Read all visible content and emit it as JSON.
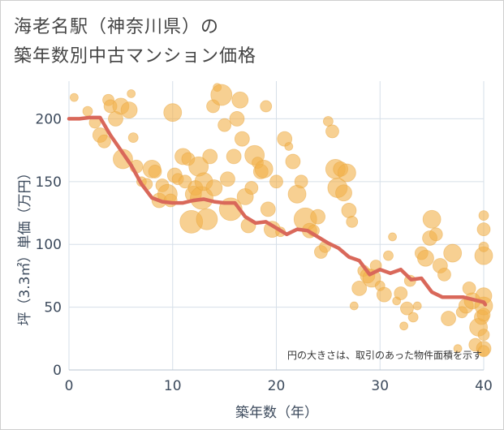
{
  "header": {
    "title_line1": "海老名駅（神奈川県）の",
    "title_line2": "築年数別中古マンション価格"
  },
  "colors": {
    "bubble": "#f2b04a",
    "line": "#d9685a",
    "grid": "#d6dfe8",
    "tick_text": "#3c4a5c"
  },
  "chart_data": {
    "type": "scatter",
    "xlabel": "築年数（年）",
    "ylabel": "坪（3.3㎡）単価（万円）",
    "xlim": [
      0,
      40
    ],
    "ylim": [
      0,
      230
    ],
    "x_ticks": [
      0,
      10,
      20,
      30,
      40
    ],
    "y_ticks": [
      0,
      50,
      100,
      150,
      200
    ],
    "grid": true,
    "note": "円の大きさは、取引のあった物件面積を示す",
    "series": [
      {
        "type": "line",
        "points": [
          [
            0,
            200
          ],
          [
            1,
            200
          ],
          [
            2,
            201
          ],
          [
            3,
            201
          ],
          [
            4,
            187
          ],
          [
            5,
            175
          ],
          [
            6,
            163
          ],
          [
            7,
            148
          ],
          [
            8,
            137
          ],
          [
            9,
            134
          ],
          [
            10,
            133
          ],
          [
            11,
            133
          ],
          [
            12,
            135
          ],
          [
            13,
            136
          ],
          [
            14,
            134
          ],
          [
            15,
            133
          ],
          [
            16,
            133
          ],
          [
            17,
            122
          ],
          [
            18,
            117
          ],
          [
            19,
            118
          ],
          [
            20,
            113
          ],
          [
            21,
            108
          ],
          [
            22,
            112
          ],
          [
            23,
            111
          ],
          [
            24,
            106
          ],
          [
            25,
            101
          ],
          [
            26,
            97
          ],
          [
            27,
            90
          ],
          [
            28,
            87
          ],
          [
            29,
            76
          ],
          [
            30,
            80
          ],
          [
            31,
            77
          ],
          [
            32,
            80
          ],
          [
            33,
            72
          ],
          [
            34,
            73
          ],
          [
            35,
            62
          ],
          [
            36,
            58
          ],
          [
            37,
            58
          ],
          [
            38,
            58
          ],
          [
            39,
            56
          ],
          [
            40,
            54
          ],
          [
            41,
            52
          ]
        ]
      },
      {
        "type": "bubble",
        "points": [
          [
            0.5,
            217,
            5
          ],
          [
            1.8,
            206,
            6
          ],
          [
            2.5,
            197,
            7
          ],
          [
            3,
            187,
            9
          ],
          [
            3.4,
            182,
            8
          ],
          [
            3.8,
            215,
            7
          ],
          [
            4,
            210,
            8
          ],
          [
            4.5,
            200,
            9
          ],
          [
            5,
            210,
            10
          ],
          [
            5.2,
            168,
            12
          ],
          [
            5.8,
            207,
            10
          ],
          [
            6,
            220,
            5
          ],
          [
            6.2,
            185,
            6
          ],
          [
            6.5,
            162,
            8
          ],
          [
            7,
            150,
            6
          ],
          [
            7.5,
            148,
            7
          ],
          [
            8,
            160,
            11
          ],
          [
            8.3,
            158,
            8
          ],
          [
            8.7,
            135,
            9
          ],
          [
            9,
            147,
            8
          ],
          [
            9.5,
            140,
            12
          ],
          [
            9.8,
            135,
            8
          ],
          [
            10,
            205,
            11
          ],
          [
            10.2,
            155,
            9
          ],
          [
            10.5,
            152,
            7
          ],
          [
            11,
            170,
            10
          ],
          [
            11.2,
            150,
            8
          ],
          [
            11.5,
            168,
            8
          ],
          [
            11.8,
            118,
            14
          ],
          [
            12,
            140,
            10
          ],
          [
            12.2,
            145,
            9
          ],
          [
            12.5,
            162,
            12
          ],
          [
            12.8,
            137,
            14
          ],
          [
            13,
            150,
            11
          ],
          [
            13.3,
            120,
            13
          ],
          [
            13.6,
            170,
            9
          ],
          [
            13.9,
            210,
            8
          ],
          [
            14,
            145,
            10
          ],
          [
            14.3,
            225,
            5
          ],
          [
            14.7,
            219,
            13
          ],
          [
            15,
            195,
            8
          ],
          [
            15.3,
            152,
            9
          ],
          [
            15.6,
            128,
            14
          ],
          [
            15.9,
            170,
            9
          ],
          [
            16.2,
            200,
            9
          ],
          [
            16.5,
            215,
            10
          ],
          [
            16.7,
            184,
            9
          ],
          [
            17,
            138,
            10
          ],
          [
            17.3,
            115,
            9
          ],
          [
            17.6,
            145,
            8
          ],
          [
            17.9,
            171,
            12
          ],
          [
            18.2,
            165,
            7
          ],
          [
            18.5,
            158,
            9
          ],
          [
            18.8,
            160,
            11
          ],
          [
            19,
            210,
            7
          ],
          [
            19.2,
            128,
            9
          ],
          [
            19.6,
            112,
            10
          ],
          [
            20,
            150,
            8
          ],
          [
            20.4,
            110,
            6
          ],
          [
            20.8,
            184,
            9
          ],
          [
            21.2,
            178,
            5
          ],
          [
            21.6,
            166,
            9
          ],
          [
            22,
            140,
            11
          ],
          [
            22.4,
            150,
            8
          ],
          [
            22.8,
            120,
            14
          ],
          [
            23.2,
            111,
            9
          ],
          [
            23.6,
            111,
            7
          ],
          [
            24,
            122,
            9
          ],
          [
            24.3,
            94,
            8
          ],
          [
            24.7,
            98,
            7
          ],
          [
            25,
            198,
            6
          ],
          [
            25.4,
            190,
            8
          ],
          [
            25.7,
            160,
            12
          ],
          [
            25.9,
            145,
            12
          ],
          [
            26.2,
            160,
            9
          ],
          [
            26.5,
            141,
            10
          ],
          [
            26.8,
            157,
            11
          ],
          [
            27,
            127,
            9
          ],
          [
            27.3,
            118,
            7
          ],
          [
            27.5,
            51,
            5
          ],
          [
            28,
            65,
            9
          ],
          [
            28.4,
            79,
            7
          ],
          [
            28.8,
            75,
            9
          ],
          [
            29.2,
            73,
            11
          ],
          [
            29.6,
            83,
            7
          ],
          [
            30,
            67,
            6
          ],
          [
            30.4,
            60,
            9
          ],
          [
            30.8,
            91,
            6
          ],
          [
            31.2,
            106,
            5
          ],
          [
            31.6,
            55,
            5
          ],
          [
            32,
            61,
            8
          ],
          [
            32.3,
            35,
            5
          ],
          [
            32.6,
            49,
            8
          ],
          [
            32.9,
            71,
            7
          ],
          [
            33.2,
            42,
            6
          ],
          [
            33.6,
            51,
            5
          ],
          [
            34,
            93,
            8
          ],
          [
            34.4,
            89,
            10
          ],
          [
            34.8,
            105,
            9
          ],
          [
            35,
            120,
            11
          ],
          [
            35.4,
            108,
            8
          ],
          [
            35.8,
            83,
            9
          ],
          [
            36.2,
            76,
            8
          ],
          [
            36.6,
            41,
            9
          ],
          [
            37,
            93,
            11
          ],
          [
            37.5,
            17,
            5
          ],
          [
            37.9,
            46,
            7
          ],
          [
            38.3,
            51,
            9
          ],
          [
            38.6,
            65,
            8
          ],
          [
            38.9,
            55,
            10
          ],
          [
            39.2,
            20,
            8
          ],
          [
            39.5,
            34,
            11
          ],
          [
            39.8,
            42,
            9
          ],
          [
            40,
            28,
            7
          ],
          [
            40,
            51,
            11
          ],
          [
            40,
            59,
            10
          ],
          [
            40,
            91,
            11
          ],
          [
            40,
            112,
            8
          ],
          [
            40,
            98,
            6
          ],
          [
            40,
            17,
            9
          ],
          [
            40,
            44,
            8
          ],
          [
            40,
            123,
            6
          ],
          [
            40,
            15,
            7
          ]
        ]
      }
    ]
  }
}
